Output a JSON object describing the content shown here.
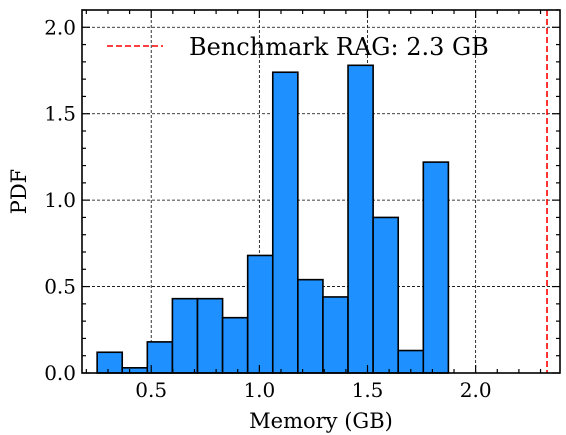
{
  "chart_data": {
    "type": "bar",
    "title": "",
    "xlabel": "Memory (GB)",
    "ylabel": "PDF",
    "xlim": [
      0.18,
      2.39
    ],
    "ylim": [
      0.0,
      2.1
    ],
    "xticks": [
      {
        "value": 0.5,
        "label": "0.5"
      },
      {
        "value": 1.0,
        "label": "1.0"
      },
      {
        "value": 1.5,
        "label": "1.5"
      },
      {
        "value": 2.0,
        "label": "2.0"
      }
    ],
    "yticks": [
      {
        "value": 0.0,
        "label": "0.0"
      },
      {
        "value": 0.5,
        "label": "0.5"
      },
      {
        "value": 1.0,
        "label": "1.0"
      },
      {
        "value": 1.5,
        "label": "1.5"
      },
      {
        "value": 2.0,
        "label": "2.0"
      }
    ],
    "grid": true,
    "bin_edges": [
      0.25,
      0.366,
      0.482,
      0.598,
      0.714,
      0.83,
      0.946,
      1.062,
      1.178,
      1.294,
      1.41,
      1.526,
      1.642,
      1.758,
      1.874
    ],
    "values": [
      0.12,
      0.03,
      0.18,
      0.43,
      0.43,
      0.32,
      0.68,
      1.74,
      0.54,
      0.44,
      1.78,
      0.9,
      0.13,
      1.22
    ],
    "bar_color": "#1e90ff",
    "bar_edge_color": "#000000",
    "reference_line": {
      "x": 2.33,
      "label": "Benchmark RAG: 2.3 GB",
      "color": "#ff0000",
      "style": "dashed"
    },
    "legend_placement": "top-left"
  }
}
